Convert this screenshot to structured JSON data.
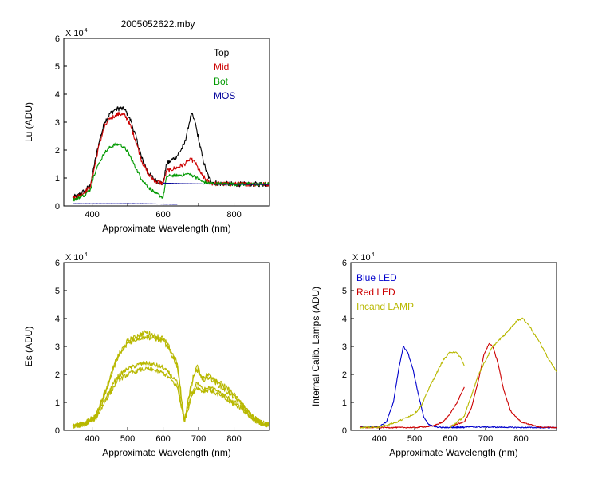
{
  "figure": {
    "title": "2005052622.mby"
  },
  "chart_data": [
    {
      "id": "lu",
      "type": "line",
      "title": "2005052622.mby",
      "xlabel": "Approximate Wavelength (nm)",
      "ylabel": "Lu (ADU)",
      "exponent_label": "X 10",
      "exponent_power": "4",
      "xlim": [
        320,
        900
      ],
      "ylim": [
        0,
        6
      ],
      "xticks": [
        400,
        500,
        600,
        700,
        800
      ],
      "xtick_labels": [
        "400",
        "",
        "600",
        "",
        "800"
      ],
      "yticks": [
        0,
        1,
        2,
        3,
        4,
        5,
        6
      ],
      "legend_position": "top-right",
      "legend_text_color": true,
      "series": [
        {
          "name": "Top",
          "color": "#000000",
          "noise": 0.09,
          "x": [
            345,
            360,
            380,
            395,
            405,
            420,
            435,
            450,
            465,
            478,
            490,
            500,
            510,
            525,
            540,
            560,
            580,
            600,
            610,
            620,
            640,
            660,
            670,
            680,
            690,
            700,
            710,
            720,
            730,
            740,
            760,
            800,
            850,
            900
          ],
          "values": [
            0.3,
            0.38,
            0.55,
            0.75,
            1.4,
            2.3,
            3.0,
            3.3,
            3.45,
            3.5,
            3.45,
            3.3,
            3.0,
            2.4,
            1.7,
            1.15,
            0.9,
            0.8,
            1.5,
            1.6,
            1.8,
            2.2,
            2.8,
            3.3,
            3.0,
            2.4,
            1.8,
            1.3,
            1.0,
            0.85,
            0.8,
            0.78,
            0.78,
            0.78
          ]
        },
        {
          "name": "Mid",
          "color": "#cc0000",
          "noise": 0.08,
          "x": [
            345,
            360,
            380,
            395,
            405,
            420,
            435,
            450,
            465,
            478,
            490,
            500,
            510,
            525,
            540,
            560,
            580,
            600,
            610,
            620,
            640,
            660,
            670,
            680,
            690,
            700,
            710,
            720,
            730,
            740,
            760,
            800,
            850,
            900
          ],
          "values": [
            0.28,
            0.35,
            0.5,
            0.7,
            1.3,
            2.2,
            2.85,
            3.1,
            3.25,
            3.3,
            3.25,
            3.1,
            2.8,
            2.25,
            1.6,
            1.1,
            0.88,
            0.8,
            1.25,
            1.3,
            1.38,
            1.5,
            1.6,
            1.65,
            1.55,
            1.3,
            1.1,
            0.95,
            0.85,
            0.8,
            0.79,
            0.78,
            0.78,
            0.78
          ]
        },
        {
          "name": "Bot",
          "color": "#009900",
          "noise": 0.06,
          "x": [
            345,
            360,
            380,
            395,
            405,
            420,
            435,
            450,
            465,
            478,
            490,
            500,
            510,
            525,
            540,
            560,
            580,
            600,
            610,
            620,
            640,
            660,
            670,
            680,
            690,
            700,
            710,
            720,
            730,
            740,
            760,
            800,
            850,
            900
          ],
          "values": [
            0.22,
            0.28,
            0.4,
            0.6,
            1.1,
            1.55,
            1.9,
            2.1,
            2.2,
            2.2,
            2.1,
            1.95,
            1.7,
            1.3,
            0.95,
            0.65,
            0.45,
            0.3,
            1.05,
            1.08,
            1.1,
            1.12,
            1.15,
            1.1,
            1.05,
            0.95,
            0.88,
            0.84,
            0.82,
            0.8,
            0.79,
            0.78,
            0.78,
            0.78
          ]
        },
        {
          "name": "MOS",
          "color": "#000099",
          "noise": 0.004,
          "x": [
            345,
            450,
            550,
            640,
            600,
            650,
            700,
            750,
            900
          ],
          "values": [
            0.08,
            0.08,
            0.08,
            0.06,
            0.82,
            0.8,
            0.79,
            0.78,
            0.77
          ]
        }
      ]
    },
    {
      "id": "es",
      "type": "line",
      "xlabel": "Approximate Wavelength (nm)",
      "ylabel": "Es (ADU)",
      "exponent_label": "X 10",
      "exponent_power": "4",
      "xlim": [
        320,
        900
      ],
      "ylim": [
        0,
        6
      ],
      "xticks": [
        400,
        500,
        600,
        700,
        800
      ],
      "xtick_labels": [
        "400",
        "500",
        "600",
        "700",
        "800"
      ],
      "yticks": [
        0,
        1,
        2,
        3,
        4,
        5,
        6
      ],
      "series": [
        {
          "color": "#b8b800",
          "noise": 0.1,
          "x": [
            345,
            380,
            410,
            440,
            470,
            500,
            530,
            550,
            575,
            600,
            620,
            640,
            660,
            680,
            695,
            710,
            730,
            760,
            790,
            820,
            850,
            880,
            900
          ],
          "values": [
            0.15,
            0.25,
            0.5,
            1.5,
            2.6,
            3.2,
            3.4,
            3.5,
            3.4,
            3.3,
            2.9,
            2.4,
            0.35,
            1.7,
            2.3,
            1.9,
            2.0,
            1.7,
            1.4,
            1.0,
            0.5,
            0.25,
            0.2
          ]
        },
        {
          "color": "#b8b800",
          "noise": 0.1,
          "x": [
            345,
            380,
            410,
            440,
            470,
            500,
            530,
            550,
            575,
            600,
            620,
            640,
            660,
            680,
            695,
            710,
            730,
            760,
            790,
            820,
            850,
            880,
            900
          ],
          "values": [
            0.15,
            0.25,
            0.5,
            1.45,
            2.55,
            3.1,
            3.3,
            3.35,
            3.3,
            3.2,
            2.8,
            2.3,
            0.35,
            1.6,
            2.2,
            1.8,
            1.9,
            1.6,
            1.3,
            0.95,
            0.5,
            0.25,
            0.2
          ]
        },
        {
          "color": "#b8b800",
          "noise": 0.08,
          "x": [
            345,
            380,
            410,
            440,
            470,
            500,
            530,
            550,
            575,
            600,
            620,
            640,
            660,
            680,
            695,
            710,
            730,
            760,
            790,
            820,
            850,
            880,
            900
          ],
          "values": [
            0.15,
            0.22,
            0.45,
            1.2,
            1.9,
            2.2,
            2.35,
            2.4,
            2.35,
            2.25,
            2.0,
            1.7,
            0.3,
            1.3,
            1.7,
            1.5,
            1.55,
            1.35,
            1.1,
            0.85,
            0.45,
            0.22,
            0.18
          ]
        },
        {
          "color": "#b8b800",
          "noise": 0.08,
          "x": [
            345,
            380,
            410,
            440,
            470,
            500,
            530,
            550,
            575,
            600,
            620,
            640,
            660,
            680,
            695,
            710,
            730,
            760,
            790,
            820,
            850,
            880,
            900
          ],
          "values": [
            0.15,
            0.22,
            0.42,
            1.1,
            1.75,
            2.0,
            2.15,
            2.2,
            2.15,
            2.05,
            1.85,
            1.55,
            0.3,
            1.2,
            1.55,
            1.4,
            1.45,
            1.25,
            1.0,
            0.8,
            0.42,
            0.2,
            0.17
          ]
        }
      ]
    },
    {
      "id": "lamps",
      "type": "line",
      "xlabel": "Approximate Wavelength (nm)",
      "ylabel": "Internal Calib. Lamps (ADU)",
      "exponent_label": "X 10",
      "exponent_power": "4",
      "xlim": [
        320,
        900
      ],
      "ylim": [
        0,
        6
      ],
      "xticks": [
        400,
        500,
        600,
        700,
        800
      ],
      "xtick_labels": [
        "400",
        "500",
        "600",
        "700",
        "800"
      ],
      "yticks": [
        0,
        1,
        2,
        3,
        4,
        5,
        6
      ],
      "legend_position": "top-left",
      "legend_text_color": true,
      "series": [
        {
          "name": "Blue LED",
          "color": "#0000cc",
          "noise": 0.02,
          "x": [
            345,
            400,
            420,
            440,
            455,
            468,
            480,
            495,
            510,
            525,
            540,
            560,
            580,
            600,
            640,
            600,
            700,
            800,
            900
          ],
          "values": [
            0.12,
            0.13,
            0.3,
            1.0,
            2.2,
            3.0,
            2.8,
            2.2,
            1.3,
            0.5,
            0.2,
            0.12,
            0.1,
            0.1,
            0.1,
            0.12,
            0.12,
            0.1,
            0.1
          ]
        },
        {
          "name": "Red LED",
          "color": "#cc0000",
          "noise": 0.02,
          "x": [
            345,
            500,
            550,
            580,
            600,
            620,
            640,
            600,
            640,
            660,
            680,
            695,
            710,
            720,
            735,
            750,
            770,
            800,
            850,
            900
          ],
          "values": [
            0.1,
            0.1,
            0.15,
            0.3,
            0.6,
            1.0,
            1.55,
            0.15,
            0.3,
            0.8,
            1.8,
            2.7,
            3.1,
            3.0,
            2.4,
            1.5,
            0.7,
            0.3,
            0.12,
            0.1
          ]
        },
        {
          "name": "Incand LAMP",
          "color": "#b8b800",
          "noise": 0.03,
          "x": [
            345,
            400,
            450,
            500,
            520,
            540,
            560,
            580,
            600,
            615,
            630,
            640,
            600,
            640,
            680,
            720,
            760,
            790,
            805,
            820,
            850,
            880,
            900
          ],
          "values": [
            0.1,
            0.12,
            0.3,
            0.6,
            0.9,
            1.5,
            2.0,
            2.5,
            2.8,
            2.8,
            2.6,
            2.3,
            0.1,
            0.5,
            2.0,
            3.0,
            3.5,
            3.95,
            4.0,
            3.8,
            3.2,
            2.5,
            2.1
          ]
        }
      ]
    }
  ]
}
